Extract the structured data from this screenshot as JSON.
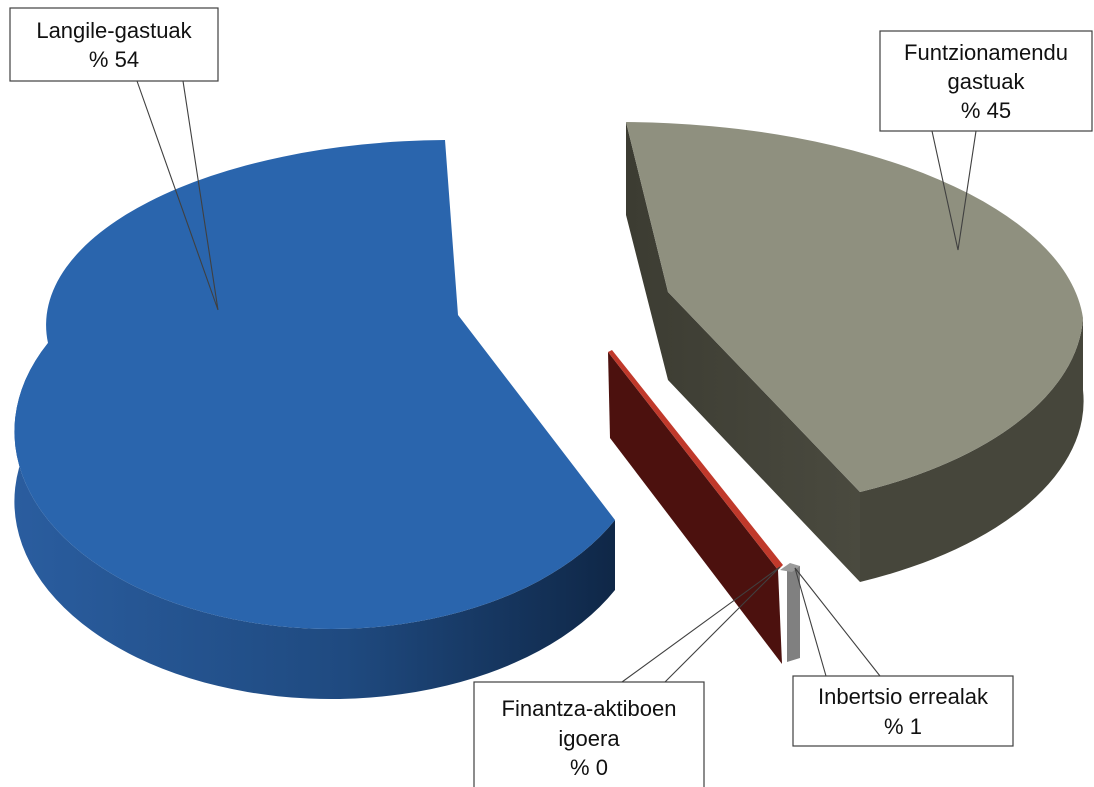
{
  "chart_data": {
    "type": "pie",
    "style": "3d-exploded",
    "title": "",
    "legend": "none",
    "slices": [
      {
        "name": "Langile-gastuak",
        "label_lines": [
          "Langile-gastuak",
          "% 54"
        ],
        "percent": 54,
        "color": "#2a65ad",
        "side_color_light": "#2a5c9c",
        "side_color_dark": "#112a4c"
      },
      {
        "name": "Funtzionamendu gastuak",
        "label_lines": [
          "Funtzionamendu",
          "gastuak",
          "% 45"
        ],
        "percent": 45,
        "color": "#8f907f",
        "side_color_light": "#46463b",
        "side_color_dark": "#3a3a31"
      },
      {
        "name": "Finantza-aktiboen igoera",
        "label_lines": [
          "Finantza-aktiboen",
          "igoera",
          "% 0"
        ],
        "percent": 0,
        "color": "#c0392b",
        "side_color_light": "#5a1410",
        "side_color_dark": "#47100d"
      },
      {
        "name": "Inbertsio errealak",
        "label_lines": [
          "Inbertsio errealak",
          "% 1"
        ],
        "percent": 1,
        "color": "#8a8a8a",
        "side_color_light": "#808080",
        "side_color_dark": "#6a6a6a"
      }
    ]
  }
}
